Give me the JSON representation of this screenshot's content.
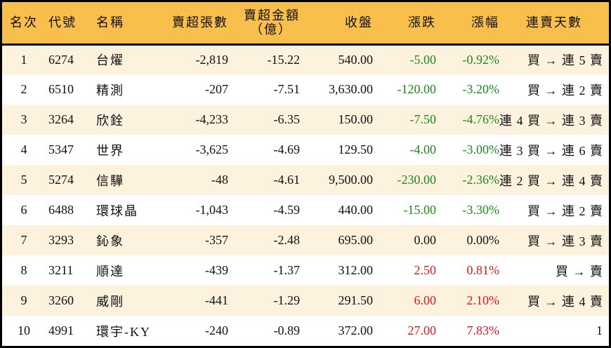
{
  "colors": {
    "header_bg": "#F8BF4C",
    "row_odd_bg": "#FDF2DD",
    "row_even_bg": "#FFFFFF",
    "down": "#1A8A1A",
    "up": "#E8141B",
    "border": "#000000"
  },
  "header": {
    "rank": "名次",
    "code": "代號",
    "name": "名稱",
    "net_sell_lots": "賣超張數",
    "net_sell_amount_line1": "賣超金額",
    "net_sell_amount_line2": "（億）",
    "close": "收盤",
    "change": "漲跌",
    "change_pct": "漲幅",
    "streak": "連賣天數"
  },
  "rows": [
    {
      "rank": "1",
      "code": "6274",
      "name": "台燿",
      "lots": "-2,819",
      "amount": "-15.22",
      "close": "540.00",
      "change": "-5.00",
      "pct": "-0.92%",
      "dir": "down",
      "streak": "買 → 連 5 賣"
    },
    {
      "rank": "2",
      "code": "6510",
      "name": "精測",
      "lots": "-207",
      "amount": "-7.51",
      "close": "3,630.00",
      "change": "-120.00",
      "pct": "-3.20%",
      "dir": "down",
      "streak": "買 → 連 2 賣"
    },
    {
      "rank": "3",
      "code": "3264",
      "name": "欣銓",
      "lots": "-4,233",
      "amount": "-6.35",
      "close": "150.00",
      "change": "-7.50",
      "pct": "-4.76%",
      "dir": "down",
      "streak": "連 4 買 → 連 3 賣"
    },
    {
      "rank": "4",
      "code": "5347",
      "name": "世界",
      "lots": "-3,625",
      "amount": "-4.69",
      "close": "129.50",
      "change": "-4.00",
      "pct": "-3.00%",
      "dir": "down",
      "streak": "連 3 買 → 連 6 賣"
    },
    {
      "rank": "5",
      "code": "5274",
      "name": "信驊",
      "lots": "-48",
      "amount": "-4.61",
      "close": "9,500.00",
      "change": "-230.00",
      "pct": "-2.36%",
      "dir": "down",
      "streak": "連 2 買 → 連 4 賣"
    },
    {
      "rank": "6",
      "code": "6488",
      "name": "環球晶",
      "lots": "-1,043",
      "amount": "-4.59",
      "close": "440.00",
      "change": "-15.00",
      "pct": "-3.30%",
      "dir": "down",
      "streak": "買 → 連 2 賣"
    },
    {
      "rank": "7",
      "code": "3293",
      "name": "鈊象",
      "lots": "-357",
      "amount": "-2.48",
      "close": "695.00",
      "change": "0.00",
      "pct": "0.00%",
      "dir": "flat",
      "streak": "買 → 連 3 賣"
    },
    {
      "rank": "8",
      "code": "3211",
      "name": "順達",
      "lots": "-439",
      "amount": "-1.37",
      "close": "312.00",
      "change": "2.50",
      "pct": "0.81%",
      "dir": "up",
      "streak": "買 → 賣"
    },
    {
      "rank": "9",
      "code": "3260",
      "name": "威剛",
      "lots": "-441",
      "amount": "-1.29",
      "close": "291.50",
      "change": "6.00",
      "pct": "2.10%",
      "dir": "up",
      "streak": "買 → 連 4 賣"
    },
    {
      "rank": "10",
      "code": "4991",
      "name": "環宇-KY",
      "lots": "-240",
      "amount": "-0.89",
      "close": "372.00",
      "change": "27.00",
      "pct": "7.83%",
      "dir": "up",
      "streak": "1"
    }
  ]
}
